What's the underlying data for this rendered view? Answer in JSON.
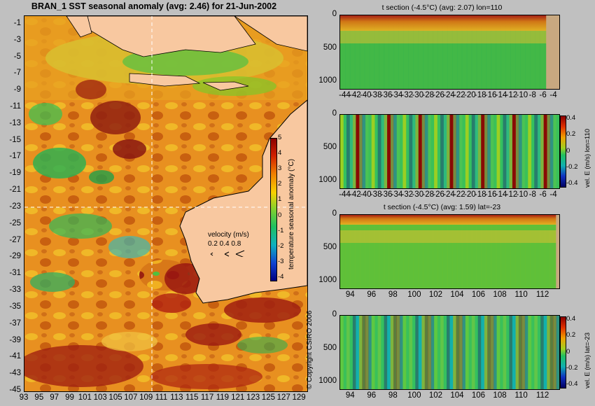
{
  "title": "BRAN_1 SST seasonal anomaly (avg: 2.46) for 21-Jun-2002",
  "copyright": "© Copyright CSIRO 2006",
  "map": {
    "lat_ticks": [
      "-1",
      "-3",
      "-5",
      "-7",
      "-9",
      "-11",
      "-13",
      "-15",
      "-17",
      "-19",
      "-21",
      "-23",
      "-25",
      "-27",
      "-29",
      "-31",
      "-33",
      "-35",
      "-37",
      "-39",
      "-41",
      "-43",
      "-45"
    ],
    "lon_ticks": [
      "93",
      "95",
      "97",
      "99",
      "101",
      "103",
      "105",
      "107",
      "109",
      "111",
      "113",
      "115",
      "117",
      "119",
      "121",
      "123",
      "125",
      "127",
      "129"
    ],
    "lat_range": [
      -45,
      0
    ],
    "lon_range": [
      93,
      130
    ],
    "section_lon": 110,
    "section_lat": -23,
    "colorbar": {
      "label": "temperature seasonal anomaly (°C)",
      "ticks": [
        "5",
        "4",
        "3",
        "2",
        "1",
        "0",
        "-1",
        "-2",
        "-3",
        "-4"
      ],
      "range": [
        -4,
        5
      ]
    },
    "velocity_key": {
      "label": "velocity (m/s)",
      "values": "0.2 0.4 0.8"
    }
  },
  "panels": [
    {
      "title": "t section (-4.5°C) (avg: 2.07) lon=110",
      "x_ticks": [
        "-44",
        "-42",
        "-40",
        "-38",
        "-36",
        "-34",
        "-32",
        "-30",
        "-28",
        "-26",
        "-24",
        "-22",
        "-20",
        "-18",
        "-16",
        "-14",
        "-12",
        "-10",
        "-8",
        "-6",
        "-4"
      ],
      "y_ticks": [
        "0",
        "500",
        "1000"
      ],
      "has_colorbar": false
    },
    {
      "title": "",
      "x_ticks": [
        "-44",
        "-42",
        "-40",
        "-38",
        "-36",
        "-34",
        "-32",
        "-30",
        "-28",
        "-26",
        "-24",
        "-22",
        "-20",
        "-18",
        "-16",
        "-14",
        "-12",
        "-10",
        "-8",
        "-6",
        "-4"
      ],
      "y_ticks": [
        "0",
        "500",
        "1000"
      ],
      "has_colorbar": true,
      "colorbar_label": "vel. E (m/s) lon=110",
      "colorbar_ticks": [
        "0.4",
        "0.2",
        "0",
        "-0.2",
        "-0.4"
      ]
    },
    {
      "title": "t section (-4.5°C) (avg: 1.59) lat=-23",
      "x_ticks": [
        "94",
        "96",
        "98",
        "100",
        "102",
        "104",
        "106",
        "108",
        "110",
        "112"
      ],
      "y_ticks": [
        "0",
        "500",
        "1000"
      ],
      "has_colorbar": false
    },
    {
      "title": "",
      "x_ticks": [
        "94",
        "96",
        "98",
        "100",
        "102",
        "104",
        "106",
        "108",
        "110",
        "112"
      ],
      "y_ticks": [
        "0",
        "500",
        "1000"
      ],
      "has_colorbar": true,
      "colorbar_label": "vel. E (m/s) lat=-23",
      "colorbar_ticks": [
        "0.4",
        "0.2",
        "0",
        "-0.2",
        "-0.4"
      ]
    }
  ]
}
